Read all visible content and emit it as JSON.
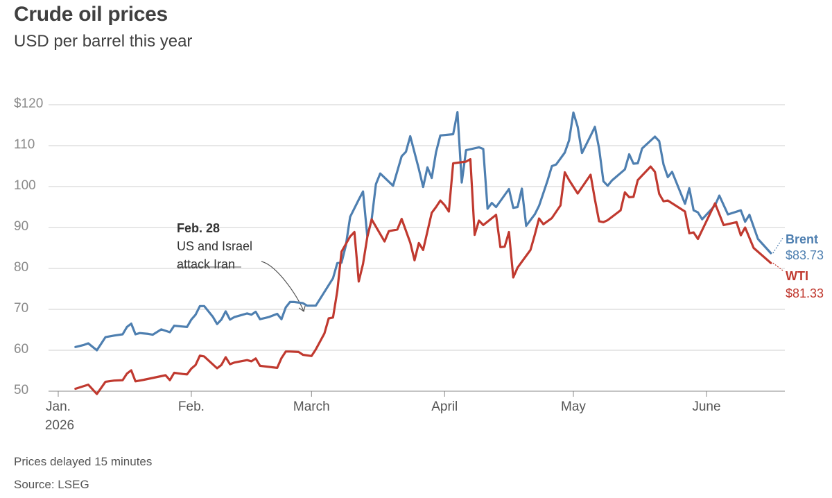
{
  "header": {
    "title": "Crude oil prices",
    "subtitle": "USD per barrel this year"
  },
  "footer": {
    "note": "Prices delayed 15 minutes",
    "source": "Source: LSEG"
  },
  "colors": {
    "brent": "#4e7fb0",
    "wti": "#c0392f",
    "grid": "#cfcfcf",
    "axis": "#888888"
  },
  "chart_data": {
    "type": "line",
    "title": "Crude oil prices",
    "subtitle": "USD per barrel this year",
    "ylim": [
      50,
      120
    ],
    "xlim": [
      "2026-01-01",
      "2026-06-17"
    ],
    "y_ticks": [
      {
        "value": 120,
        "label": "$120"
      },
      {
        "value": 110,
        "label": "110"
      },
      {
        "value": 100,
        "label": "100"
      },
      {
        "value": 90,
        "label": "90"
      },
      {
        "value": 80,
        "label": "80"
      },
      {
        "value": 70,
        "label": "70"
      },
      {
        "value": 60,
        "label": "60"
      },
      {
        "value": 50,
        "label": "50"
      }
    ],
    "x_ticks": [
      {
        "date": "2026-01-01",
        "label": "Jan.",
        "sublabel": "2026"
      },
      {
        "date": "2026-02-01",
        "label": "Feb.",
        "sublabel": ""
      },
      {
        "date": "2026-03-01",
        "label": "March",
        "sublabel": ""
      },
      {
        "date": "2026-04-01",
        "label": "April",
        "sublabel": ""
      },
      {
        "date": "2026-05-01",
        "label": "May",
        "sublabel": ""
      },
      {
        "date": "2026-06-01",
        "label": "June",
        "sublabel": ""
      }
    ],
    "grid": true,
    "annotation": {
      "date": "2026-02-28",
      "lines": [
        "Feb. 28",
        "US and Israel",
        "attack Iran"
      ]
    },
    "series": [
      {
        "name": "Brent",
        "last_value_label": "$83.73",
        "points": [
          [
            "2026-01-05",
            60.8
          ],
          [
            "2026-01-07",
            61.3
          ],
          [
            "2026-01-08",
            61.7
          ],
          [
            "2026-01-10",
            60.0
          ],
          [
            "2026-01-12",
            63.2
          ],
          [
            "2026-01-14",
            63.6
          ],
          [
            "2026-01-16",
            63.9
          ],
          [
            "2026-01-17",
            65.7
          ],
          [
            "2026-01-18",
            66.5
          ],
          [
            "2026-01-19",
            63.9
          ],
          [
            "2026-01-20",
            64.2
          ],
          [
            "2026-01-22",
            64.0
          ],
          [
            "2026-01-23",
            63.8
          ],
          [
            "2026-01-25",
            65.1
          ],
          [
            "2026-01-27",
            64.4
          ],
          [
            "2026-01-28",
            66.0
          ],
          [
            "2026-01-30",
            65.8
          ],
          [
            "2026-01-31",
            65.7
          ],
          [
            "2026-02-01",
            67.5
          ],
          [
            "2026-02-02",
            68.7
          ],
          [
            "2026-02-03",
            70.8
          ],
          [
            "2026-02-04",
            70.8
          ],
          [
            "2026-02-06",
            68.2
          ],
          [
            "2026-02-07",
            66.4
          ],
          [
            "2026-02-08",
            67.5
          ],
          [
            "2026-02-09",
            69.5
          ],
          [
            "2026-02-10",
            67.5
          ],
          [
            "2026-02-11",
            68.1
          ],
          [
            "2026-02-13",
            68.7
          ],
          [
            "2026-02-14",
            69.0
          ],
          [
            "2026-02-15",
            68.7
          ],
          [
            "2026-02-16",
            69.4
          ],
          [
            "2026-02-17",
            67.6
          ],
          [
            "2026-02-19",
            68.1
          ],
          [
            "2026-02-20",
            68.5
          ],
          [
            "2026-02-21",
            68.9
          ],
          [
            "2026-02-22",
            67.6
          ],
          [
            "2026-02-23",
            70.5
          ],
          [
            "2026-02-24",
            71.8
          ],
          [
            "2026-02-25",
            71.8
          ],
          [
            "2026-02-27",
            71.5
          ],
          [
            "2026-02-28",
            70.9
          ],
          [
            "2026-03-02",
            70.9
          ],
          [
            "2026-03-06",
            77.6
          ],
          [
            "2026-03-07",
            81.3
          ],
          [
            "2026-03-08",
            81.4
          ],
          [
            "2026-03-09",
            85.6
          ],
          [
            "2026-03-10",
            92.6
          ],
          [
            "2026-03-12",
            96.8
          ],
          [
            "2026-03-13",
            98.8
          ],
          [
            "2026-03-14",
            87.8
          ],
          [
            "2026-03-15",
            91.9
          ],
          [
            "2026-03-16",
            100.6
          ],
          [
            "2026-03-17",
            103.2
          ],
          [
            "2026-03-20",
            100.2
          ],
          [
            "2026-03-22",
            107.4
          ],
          [
            "2026-03-23",
            108.5
          ],
          [
            "2026-03-24",
            112.3
          ],
          [
            "2026-03-26",
            104.3
          ],
          [
            "2026-03-27",
            99.9
          ],
          [
            "2026-03-28",
            104.7
          ],
          [
            "2026-03-29",
            102.1
          ],
          [
            "2026-03-30",
            108.4
          ],
          [
            "2026-03-31",
            112.5
          ],
          [
            "2026-04-03",
            112.8
          ],
          [
            "2026-04-04",
            118.2
          ],
          [
            "2026-04-05",
            101.0
          ],
          [
            "2026-04-06",
            108.9
          ],
          [
            "2026-04-09",
            109.6
          ],
          [
            "2026-04-10",
            109.2
          ],
          [
            "2026-04-11",
            94.6
          ],
          [
            "2026-04-12",
            96.0
          ],
          [
            "2026-04-13",
            95.0
          ],
          [
            "2026-04-16",
            99.4
          ],
          [
            "2026-04-17",
            94.8
          ],
          [
            "2026-04-18",
            95.0
          ],
          [
            "2026-04-19",
            99.5
          ],
          [
            "2026-04-20",
            90.4
          ],
          [
            "2026-04-22",
            93.2
          ],
          [
            "2026-04-23",
            95.3
          ],
          [
            "2026-04-25",
            101.5
          ],
          [
            "2026-04-26",
            105.0
          ],
          [
            "2026-04-27",
            105.4
          ],
          [
            "2026-04-29",
            108.3
          ],
          [
            "2026-04-30",
            111.3
          ],
          [
            "2026-05-01",
            118.1
          ],
          [
            "2026-05-02",
            114.6
          ],
          [
            "2026-05-03",
            108.2
          ],
          [
            "2026-05-05",
            112.4
          ],
          [
            "2026-05-06",
            114.6
          ],
          [
            "2026-05-07",
            109.3
          ],
          [
            "2026-05-08",
            101.3
          ],
          [
            "2026-05-09",
            100.2
          ],
          [
            "2026-05-10",
            101.5
          ],
          [
            "2026-05-13",
            104.2
          ],
          [
            "2026-05-14",
            107.9
          ],
          [
            "2026-05-15",
            105.6
          ],
          [
            "2026-05-16",
            105.7
          ],
          [
            "2026-05-17",
            109.3
          ],
          [
            "2026-05-20",
            112.2
          ],
          [
            "2026-05-21",
            111.1
          ],
          [
            "2026-05-22",
            105.4
          ],
          [
            "2026-05-23",
            102.3
          ],
          [
            "2026-05-24",
            103.6
          ],
          [
            "2026-05-27",
            95.8
          ],
          [
            "2026-05-28",
            99.6
          ],
          [
            "2026-05-29",
            94.2
          ],
          [
            "2026-05-30",
            93.7
          ],
          [
            "2026-05-31",
            92.0
          ],
          [
            "2026-06-03",
            95.4
          ],
          [
            "2026-06-04",
            97.8
          ],
          [
            "2026-06-06",
            93.2
          ],
          [
            "2026-06-09",
            94.2
          ],
          [
            "2026-06-10",
            91.4
          ],
          [
            "2026-06-11",
            93.1
          ],
          [
            "2026-06-13",
            87.2
          ],
          [
            "2026-06-16",
            83.73
          ]
        ]
      },
      {
        "name": "WTI",
        "last_value_label": "$81.33",
        "points": [
          [
            "2026-01-05",
            50.6
          ],
          [
            "2026-01-08",
            51.6
          ],
          [
            "2026-01-10",
            49.3
          ],
          [
            "2026-01-12",
            52.3
          ],
          [
            "2026-01-14",
            52.6
          ],
          [
            "2026-01-16",
            52.7
          ],
          [
            "2026-01-17",
            54.3
          ],
          [
            "2026-01-18",
            55.1
          ],
          [
            "2026-01-19",
            52.4
          ],
          [
            "2026-01-21",
            52.8
          ],
          [
            "2026-01-26",
            53.9
          ],
          [
            "2026-01-27",
            52.7
          ],
          [
            "2026-01-28",
            54.5
          ],
          [
            "2026-01-30",
            54.2
          ],
          [
            "2026-01-31",
            54.1
          ],
          [
            "2026-02-01",
            55.5
          ],
          [
            "2026-02-02",
            56.4
          ],
          [
            "2026-02-03",
            58.7
          ],
          [
            "2026-02-04",
            58.5
          ],
          [
            "2026-02-07",
            55.6
          ],
          [
            "2026-02-08",
            56.4
          ],
          [
            "2026-02-09",
            58.3
          ],
          [
            "2026-02-10",
            56.6
          ],
          [
            "2026-02-11",
            57.0
          ],
          [
            "2026-02-14",
            57.6
          ],
          [
            "2026-02-15",
            57.3
          ],
          [
            "2026-02-16",
            58.0
          ],
          [
            "2026-02-17",
            56.2
          ],
          [
            "2026-02-21",
            55.7
          ],
          [
            "2026-02-22",
            58.1
          ],
          [
            "2026-02-23",
            59.7
          ],
          [
            "2026-02-24",
            59.7
          ],
          [
            "2026-02-26",
            59.6
          ],
          [
            "2026-02-27",
            58.9
          ],
          [
            "2026-03-01",
            58.6
          ],
          [
            "2026-03-02",
            60.2
          ],
          [
            "2026-03-04",
            64.1
          ],
          [
            "2026-03-05",
            67.8
          ],
          [
            "2026-03-06",
            68.0
          ],
          [
            "2026-03-07",
            74.5
          ],
          [
            "2026-03-08",
            84.1
          ],
          [
            "2026-03-10",
            87.8
          ],
          [
            "2026-03-11",
            88.9
          ],
          [
            "2026-03-12",
            76.8
          ],
          [
            "2026-03-13",
            81.1
          ],
          [
            "2026-03-14",
            87.7
          ],
          [
            "2026-03-15",
            92.0
          ],
          [
            "2026-03-18",
            86.6
          ],
          [
            "2026-03-19",
            89.1
          ],
          [
            "2026-03-20",
            89.3
          ],
          [
            "2026-03-21",
            89.5
          ],
          [
            "2026-03-22",
            92.1
          ],
          [
            "2026-03-24",
            86.3
          ],
          [
            "2026-03-25",
            82.0
          ],
          [
            "2026-03-26",
            86.2
          ],
          [
            "2026-03-27",
            84.5
          ],
          [
            "2026-03-29",
            93.6
          ],
          [
            "2026-03-30",
            95.0
          ],
          [
            "2026-03-31",
            96.6
          ],
          [
            "2026-04-01",
            95.5
          ],
          [
            "2026-04-02",
            93.9
          ],
          [
            "2026-04-03",
            105.7
          ],
          [
            "2026-04-06",
            106.1
          ],
          [
            "2026-04-07",
            106.7
          ],
          [
            "2026-04-08",
            88.2
          ],
          [
            "2026-04-09",
            91.7
          ],
          [
            "2026-04-10",
            90.6
          ],
          [
            "2026-04-13",
            93.1
          ],
          [
            "2026-04-14",
            85.2
          ],
          [
            "2026-04-15",
            85.3
          ],
          [
            "2026-04-16",
            88.9
          ],
          [
            "2026-04-17",
            77.8
          ],
          [
            "2026-04-18",
            80.2
          ],
          [
            "2026-04-21",
            84.5
          ],
          [
            "2026-04-22",
            88.2
          ],
          [
            "2026-04-23",
            92.2
          ],
          [
            "2026-04-24",
            90.8
          ],
          [
            "2026-04-26",
            92.3
          ],
          [
            "2026-04-28",
            95.4
          ],
          [
            "2026-04-29",
            103.5
          ],
          [
            "2026-04-30",
            101.6
          ],
          [
            "2026-05-02",
            98.3
          ],
          [
            "2026-05-05",
            102.9
          ],
          [
            "2026-05-06",
            96.9
          ],
          [
            "2026-05-07",
            91.5
          ],
          [
            "2026-05-08",
            91.3
          ],
          [
            "2026-05-09",
            91.8
          ],
          [
            "2026-05-12",
            94.2
          ],
          [
            "2026-05-13",
            98.6
          ],
          [
            "2026-05-14",
            97.4
          ],
          [
            "2026-05-15",
            97.5
          ],
          [
            "2026-05-16",
            101.6
          ],
          [
            "2026-05-19",
            104.9
          ],
          [
            "2026-05-20",
            103.6
          ],
          [
            "2026-05-21",
            98.2
          ],
          [
            "2026-05-22",
            96.4
          ],
          [
            "2026-05-23",
            96.6
          ],
          [
            "2026-05-27",
            93.9
          ],
          [
            "2026-05-28",
            88.6
          ],
          [
            "2026-05-29",
            88.8
          ],
          [
            "2026-05-30",
            87.2
          ],
          [
            "2026-06-03",
            95.9
          ],
          [
            "2026-06-05",
            90.6
          ],
          [
            "2026-06-08",
            91.3
          ],
          [
            "2026-06-09",
            88.1
          ],
          [
            "2026-06-10",
            90.0
          ],
          [
            "2026-06-12",
            85.0
          ],
          [
            "2026-06-16",
            81.33
          ]
        ]
      }
    ]
  }
}
